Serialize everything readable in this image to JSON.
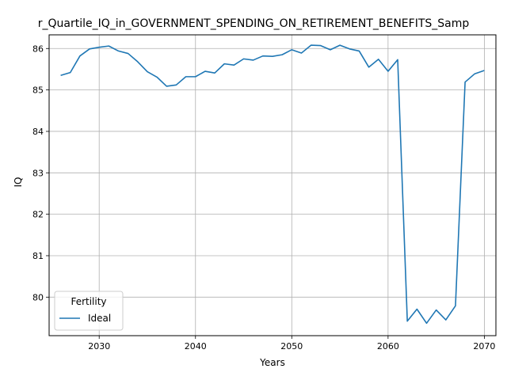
{
  "chart_data": {
    "type": "line",
    "title": "r_Quartile_IQ_in_GOVERNMENT_SPENDING_ON_RETIREMENT_BENEFITS_Samp",
    "xlabel": "Years",
    "ylabel": "IQ",
    "xlim": [
      2024.8,
      2071.2
    ],
    "ylim": [
      79.07,
      86.33
    ],
    "x_ticks": [
      2030,
      2040,
      2050,
      2060,
      2070
    ],
    "y_ticks": [
      80,
      81,
      82,
      83,
      84,
      85,
      86
    ],
    "grid": true,
    "legend": {
      "title": "Fertility",
      "placement": "lower-left"
    },
    "series": [
      {
        "name": "Ideal",
        "color": "#1f77b4",
        "x": [
          2026,
          2027,
          2028,
          2029,
          2030,
          2031,
          2032,
          2033,
          2034,
          2035,
          2036,
          2037,
          2038,
          2039,
          2040,
          2041,
          2042,
          2043,
          2044,
          2045,
          2046,
          2047,
          2048,
          2049,
          2050,
          2051,
          2052,
          2053,
          2054,
          2055,
          2056,
          2057,
          2058,
          2059,
          2060,
          2061,
          2062,
          2063,
          2064,
          2065,
          2066,
          2067,
          2068,
          2069,
          2070
        ],
        "values": [
          85.35,
          85.42,
          85.82,
          85.99,
          86.03,
          86.06,
          85.94,
          85.88,
          85.68,
          85.44,
          85.31,
          85.09,
          85.12,
          85.32,
          85.32,
          85.45,
          85.41,
          85.63,
          85.6,
          85.75,
          85.72,
          85.82,
          85.81,
          85.85,
          85.97,
          85.89,
          86.08,
          86.07,
          85.97,
          86.08,
          85.99,
          85.94,
          85.55,
          85.74,
          85.45,
          85.73,
          79.42,
          79.71,
          79.37,
          79.69,
          79.45,
          79.79,
          85.19,
          85.39,
          85.47
        ]
      }
    ]
  }
}
